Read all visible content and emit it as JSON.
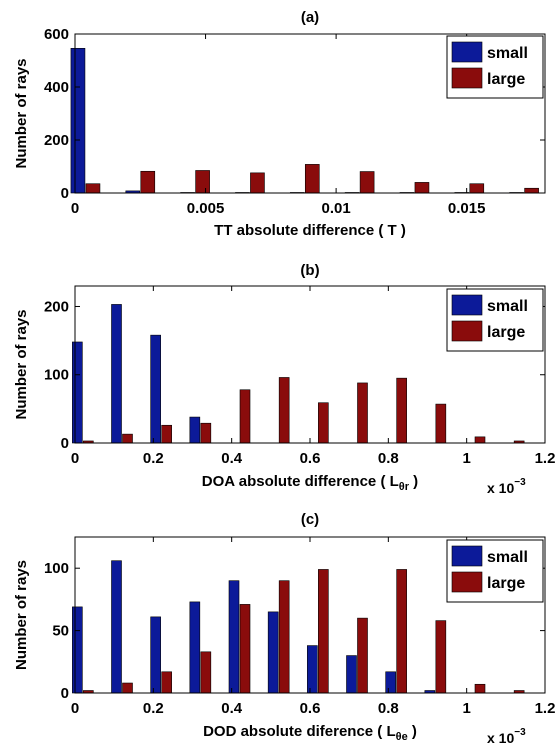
{
  "chart_data": [
    {
      "type": "bar",
      "title": "(a)",
      "xlabel": "TT absolute difference ( T )",
      "ylabel": "Number of rays",
      "xlim": [
        0,
        0.018
      ],
      "ylim": [
        0,
        600
      ],
      "xticks": [
        0,
        0.005,
        0.01,
        0.015
      ],
      "xtick_labels": [
        "0",
        "0.005",
        "0.01",
        "0.015"
      ],
      "yticks": [
        0,
        200,
        400,
        600
      ],
      "ytick_labels": [
        "0",
        "200",
        "400",
        "600"
      ],
      "bin_centers": [
        0.0004,
        0.0025,
        0.0046,
        0.0067,
        0.0088,
        0.0109,
        0.013,
        0.0151,
        0.0172
      ],
      "series": [
        {
          "name": "small",
          "color": "#0c1a99",
          "values": [
            546,
            8,
            2,
            2,
            2,
            2,
            2,
            2,
            2
          ]
        },
        {
          "name": "large",
          "color": "#8a0c0c",
          "values": [
            35,
            82,
            85,
            76,
            108,
            81,
            40,
            35,
            18
          ]
        }
      ],
      "legend": "top-right",
      "exponent_label": ""
    },
    {
      "type": "bar",
      "title": "(b)",
      "xlabel": "DOA absolute difference ( L",
      "xlabel_sub": "θr",
      "xlabel_end": ")",
      "ylabel": "Number of rays",
      "xlim": [
        0,
        1.2
      ],
      "ylim": [
        0,
        230
      ],
      "xticks": [
        0,
        0.2,
        0.4,
        0.6,
        0.8,
        1,
        1.2
      ],
      "xtick_labels": [
        "0",
        "0.2",
        "0.4",
        "0.6",
        "0.8",
        "1",
        "1.2"
      ],
      "yticks": [
        0,
        100,
        200
      ],
      "ytick_labels": [
        "0",
        "100",
        "200"
      ],
      "bin_centers": [
        0.02,
        0.12,
        0.22,
        0.32,
        0.42,
        0.52,
        0.62,
        0.72,
        0.82,
        0.92,
        1.02,
        1.12
      ],
      "series": [
        {
          "name": "small",
          "color": "#0c1a99",
          "values": [
            148,
            203,
            158,
            38,
            0,
            0,
            0,
            0,
            0,
            0,
            0,
            0
          ]
        },
        {
          "name": "large",
          "color": "#8a0c0c",
          "values": [
            3,
            13,
            26,
            29,
            78,
            96,
            59,
            88,
            95,
            57,
            9,
            3
          ]
        }
      ],
      "legend": "top-right",
      "exponent_label": "x 10",
      "exponent_power": "−3"
    },
    {
      "type": "bar",
      "title": "(c)",
      "xlabel": "DOD absolute diference ( L",
      "xlabel_sub": "θe",
      "xlabel_end": ")",
      "ylabel": "Number of rays",
      "xlim": [
        0,
        1.2
      ],
      "ylim": [
        0,
        125
      ],
      "xticks": [
        0,
        0.2,
        0.4,
        0.6,
        0.8,
        1,
        1.2
      ],
      "xtick_labels": [
        "0",
        "0.2",
        "0.4",
        "0.6",
        "0.8",
        "1",
        "1.2"
      ],
      "yticks": [
        0,
        50,
        100
      ],
      "ytick_labels": [
        "0",
        "50",
        "100"
      ],
      "bin_centers": [
        0.02,
        0.12,
        0.22,
        0.32,
        0.42,
        0.52,
        0.62,
        0.72,
        0.82,
        0.92,
        1.02,
        1.12
      ],
      "series": [
        {
          "name": "small",
          "color": "#0c1a99",
          "values": [
            69,
            106,
            61,
            73,
            90,
            65,
            38,
            30,
            17,
            2,
            0,
            0
          ]
        },
        {
          "name": "large",
          "color": "#8a0c0c",
          "values": [
            2,
            8,
            17,
            33,
            71,
            90,
            99,
            60,
            99,
            58,
            7,
            2
          ]
        }
      ],
      "legend": "top-right",
      "exponent_label": "x 10",
      "exponent_power": "−3"
    }
  ]
}
